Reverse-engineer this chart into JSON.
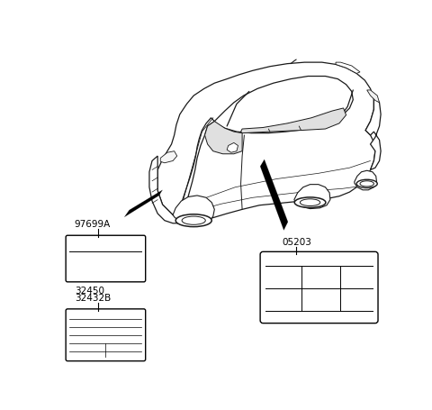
{
  "bg_color": "#ffffff",
  "line_color": "#000000",
  "label_97699A": "97699A",
  "label_05203": "05203",
  "label_32450": "32450",
  "label_32432B": "32432B",
  "car_ec": "#1a1a1a",
  "car_lw": 0.9
}
